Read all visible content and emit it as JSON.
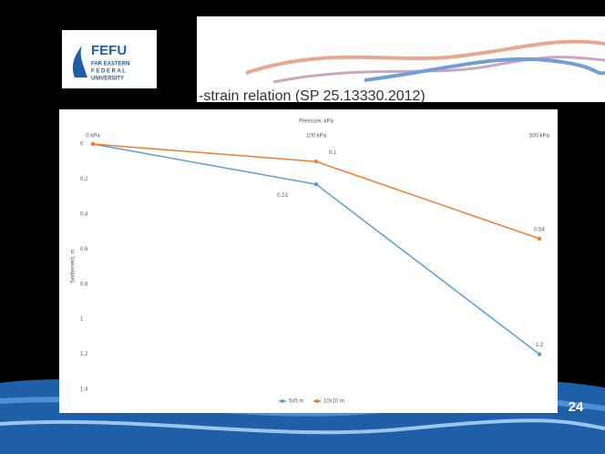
{
  "logo": {
    "name": "FEFU",
    "lines": [
      "FAR EASTERN",
      "F E D E R A L",
      "UNIVERSITY"
    ]
  },
  "slide": {
    "title": "-strain relation (SP 25.13330.2012)",
    "page_number": "24"
  },
  "chart_data": {
    "type": "line",
    "x_label": "Pressure, kPa",
    "y_label": "Settlement, m",
    "categories": [
      "0 kPa",
      "100 kPa",
      "500 kPa"
    ],
    "series": [
      {
        "name": "5x5 m",
        "color": "#5b9bd5",
        "values": [
          0,
          0.23,
          1.2
        ],
        "value_labels": [
          null,
          "0.23",
          "1.2"
        ]
      },
      {
        "name": "10x10 m",
        "color": "#ed7d31",
        "values": [
          0,
          0.1,
          0.54
        ],
        "value_labels": [
          null,
          "0.1",
          "0.54"
        ]
      }
    ],
    "ylim": [
      0,
      1.4
    ],
    "yticks": [
      0,
      0.2,
      0.4,
      0.6,
      0.8,
      1,
      1.2,
      1.4
    ],
    "y_inverted": true,
    "legend": "bottom"
  }
}
